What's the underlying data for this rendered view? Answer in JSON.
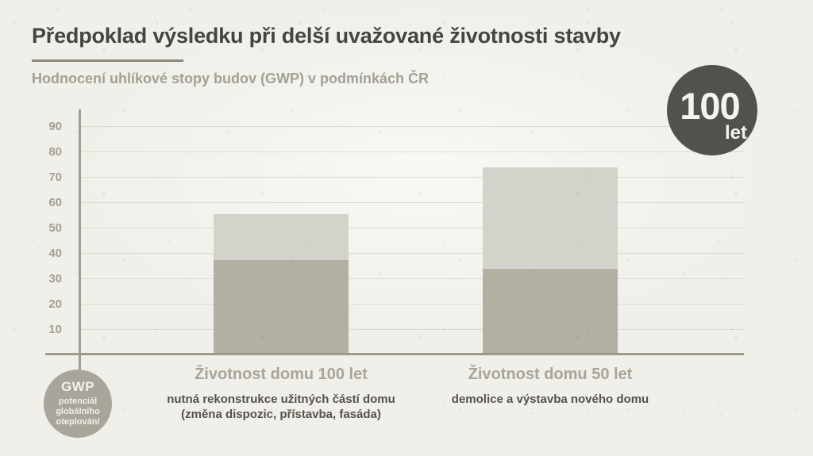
{
  "header": {
    "title": "Předpoklad výsledku při delší uvažované životnosti stavby",
    "subtitle": "Hodnocení uhlíkové stopy budov (GWP) v podmínkách ČR"
  },
  "badge": {
    "value": "100",
    "unit": "let"
  },
  "gwp_legend": {
    "abbr": "GWP",
    "description": "potenciál\nglobálního\noteplování"
  },
  "colors": {
    "background": "#f0efe9",
    "bar_dark": "#b2b0a3",
    "bar_light": "#d4d3cb",
    "badge_circle": "#53514c",
    "gwp_circle": "#a8a69b",
    "title_text": "#45443f",
    "muted_text": "#a3a196"
  },
  "chart_data": {
    "type": "bar",
    "stacked": true,
    "title": "Předpoklad výsledku při delší uvažované životnosti stavby",
    "subtitle": "Hodnocení uhlíkové stopy budov (GWP) v podmínkách ČR",
    "xlabel": "",
    "ylabel": "GWP",
    "ylim": [
      0,
      95
    ],
    "yticks": [
      10,
      20,
      30,
      40,
      50,
      60,
      70,
      80,
      90
    ],
    "grid": true,
    "legend": false,
    "categories": [
      "Životnost domu 100 let",
      "Životnost domu 50 let"
    ],
    "captions": [
      "nutná rekonstrukce užitných částí domu\n(změna dispozic, přístavba, fasáda)",
      "demolice a výstavba nového domu"
    ],
    "series": [
      {
        "name": "segment_dark",
        "color": "#b2b0a3",
        "values": [
          37.5,
          34
        ]
      },
      {
        "name": "segment_light",
        "color": "#d4d3cb",
        "values": [
          18,
          40
        ]
      }
    ],
    "totals": [
      55.5,
      74
    ],
    "annotations": [
      "100 let"
    ]
  }
}
